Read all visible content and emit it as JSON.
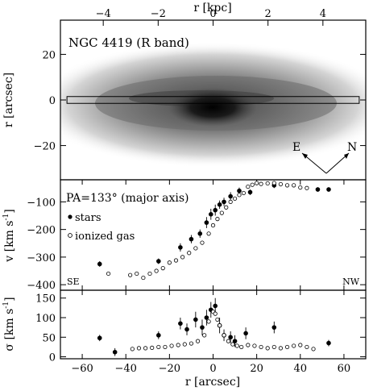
{
  "chart_data": [
    {
      "type": "image",
      "title": "NGC 4419 (R band)",
      "x_top_label": "r [kpc]",
      "x_top_ticks": [
        -4,
        -2,
        0,
        2,
        4
      ],
      "x_top_range": [
        -5.56,
        5.56
      ],
      "ylabel": "r [arcsec]",
      "ylim": [
        -35,
        35
      ],
      "y_ticks": [
        20,
        0,
        -20
      ],
      "slit_halfwidth": 1.5,
      "compass": {
        "east_label": "E",
        "north_label": "N"
      }
    },
    {
      "type": "scatter",
      "annotation": "PA=133° (major axis)",
      "ylabel_main": "v [km s",
      "ylabel_sup": "-1",
      "ylabel_end": "]",
      "ylim": [
        -420,
        -20
      ],
      "y_ticks": [
        -100,
        -200,
        -300,
        -400
      ],
      "corner_left": "SE",
      "corner_right": "NW",
      "legend": [
        {
          "name": "stars",
          "marker": "filled-circle"
        },
        {
          "name": "ionized gas",
          "marker": "open-circle"
        }
      ],
      "series": [
        {
          "name": "stars",
          "x": [
            -52,
            -25,
            -15,
            -10,
            -6,
            -3,
            -1,
            1,
            3,
            5,
            8,
            12,
            17,
            28,
            48,
            53
          ],
          "y": [
            -325,
            -315,
            -265,
            -235,
            -215,
            -175,
            -145,
            -130,
            -110,
            -100,
            -80,
            -60,
            -65,
            -40,
            -55,
            -55
          ],
          "err": [
            10,
            10,
            15,
            15,
            15,
            20,
            20,
            20,
            15,
            15,
            15,
            12,
            10,
            10,
            8,
            8
          ]
        },
        {
          "name": "ionized gas",
          "x": [
            -48,
            -38,
            -35,
            -32,
            -29,
            -26,
            -23,
            -20,
            -17,
            -14,
            -11,
            -8,
            -5,
            -2,
            0,
            2,
            4,
            6,
            8,
            10,
            12,
            14,
            16,
            18,
            20,
            22,
            25,
            28,
            31,
            34,
            37,
            40,
            43
          ],
          "y": [
            -360,
            -365,
            -360,
            -375,
            -360,
            -350,
            -340,
            -320,
            -312,
            -300,
            -285,
            -268,
            -248,
            -215,
            -185,
            -162,
            -140,
            -120,
            -100,
            -88,
            -75,
            -68,
            -45,
            -38,
            -32,
            -35,
            -33,
            -32,
            -36,
            -40,
            -40,
            -48,
            -50
          ]
        }
      ]
    },
    {
      "type": "scatter",
      "xlabel": "r [arcsec]",
      "x_ticks": [
        -60,
        -40,
        -20,
        0,
        20,
        40,
        60
      ],
      "xlim": [
        -70,
        70
      ],
      "ylabel_main": "σ [km s",
      "ylabel_sup": "-1",
      "ylabel_end": "]",
      "ylim": [
        -5,
        170
      ],
      "y_ticks": [
        0,
        50,
        100,
        150
      ],
      "series": [
        {
          "name": "stars",
          "x": [
            -52,
            -45,
            -25,
            -15,
            -12,
            -8,
            -5,
            -3,
            -1,
            1,
            3,
            5,
            8,
            10,
            15,
            28,
            53
          ],
          "y": [
            48,
            12,
            55,
            85,
            70,
            95,
            75,
            100,
            120,
            130,
            80,
            55,
            50,
            40,
            60,
            75,
            35
          ],
          "err": [
            8,
            10,
            10,
            15,
            15,
            20,
            20,
            20,
            20,
            20,
            20,
            15,
            15,
            15,
            15,
            15,
            8
          ]
        },
        {
          "name": "ionized gas",
          "x": [
            -37,
            -34,
            -31,
            -28,
            -25,
            -22,
            -19,
            -16,
            -13,
            -10,
            -7,
            -4,
            -2,
            0,
            1,
            2,
            3,
            5,
            7,
            9,
            11,
            13,
            16,
            19,
            22,
            25,
            28,
            31,
            34,
            37,
            40,
            43,
            46
          ],
          "y": [
            20,
            22,
            22,
            23,
            25,
            25,
            28,
            30,
            32,
            34,
            40,
            55,
            90,
            115,
            110,
            95,
            80,
            55,
            40,
            32,
            28,
            25,
            30,
            28,
            25,
            22,
            25,
            22,
            25,
            28,
            30,
            25,
            20
          ]
        }
      ]
    }
  ]
}
